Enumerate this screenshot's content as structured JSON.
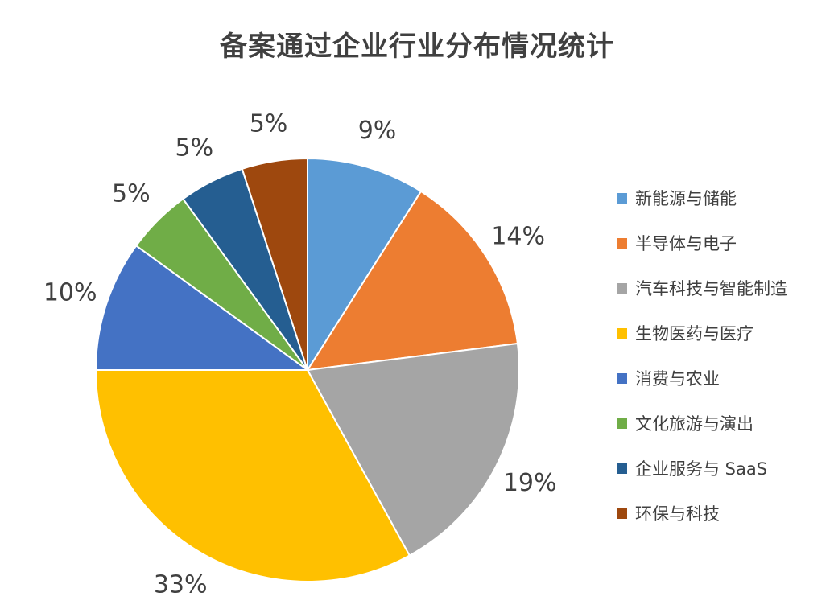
{
  "chart_data": {
    "type": "pie",
    "title": "备案通过企业行业分布情况统计",
    "categories": [
      "新能源与储能",
      "半导体与电子",
      "汽车科技与智能制造",
      "生物医药与医疗",
      "消费与农业",
      "文化旅游与演出",
      "企业服务与 SaaS",
      "环保与科技"
    ],
    "values": [
      9,
      14,
      19,
      33,
      10,
      5,
      5,
      5
    ],
    "labels": [
      "9%",
      "14%",
      "19%",
      "33%",
      "10%",
      "5%",
      "5%",
      "5%"
    ],
    "colors": [
      "#5B9BD5",
      "#ED7D31",
      "#A5A5A5",
      "#FFC000",
      "#4472C4",
      "#70AD47",
      "#255E91",
      "#9E480E"
    ],
    "legend_position": "right",
    "start_angle": "12 o'clock",
    "direction": "clockwise"
  }
}
